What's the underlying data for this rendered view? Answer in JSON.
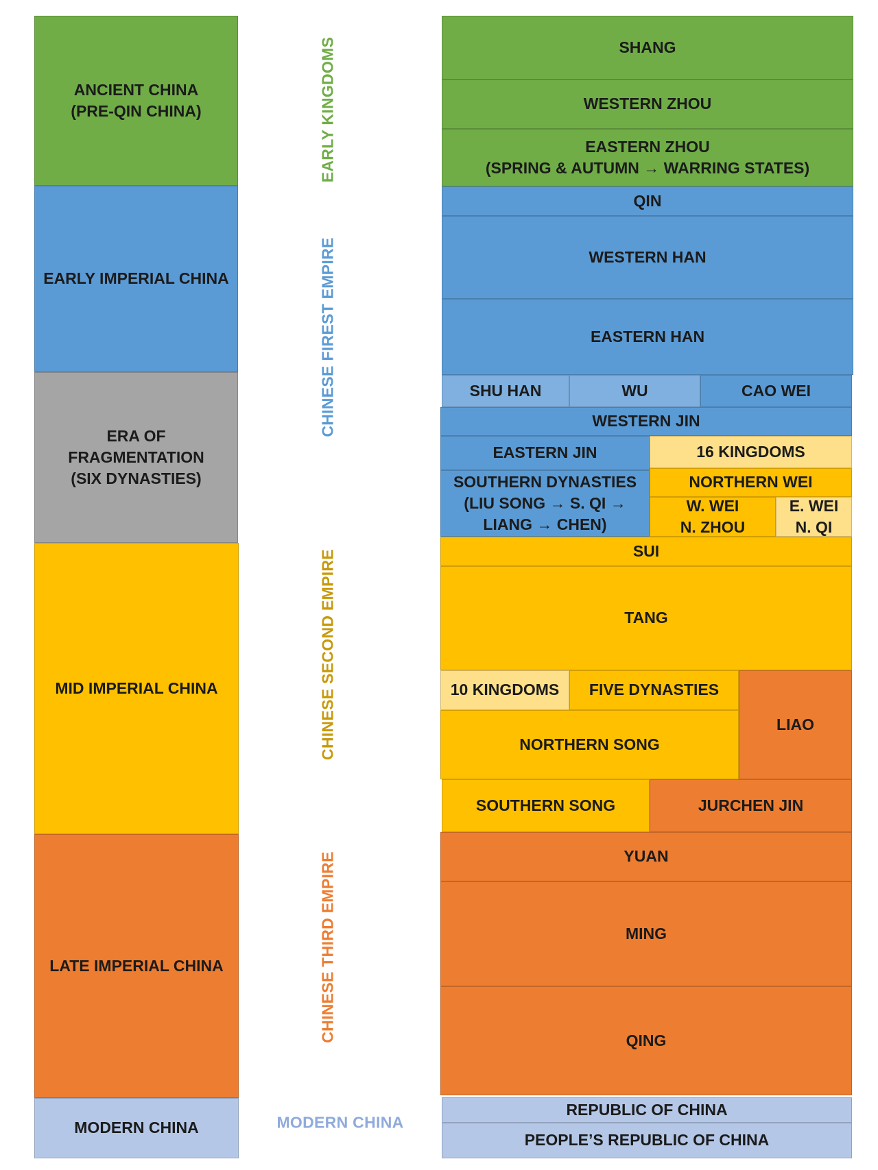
{
  "colors": {
    "green": "#70ad47",
    "blue": "#5b9bd5",
    "gray": "#a5a5a5",
    "gold": "#ffc000",
    "orange": "#ed7d31",
    "pale_blue": "#b4c7e7",
    "light_gold": "#ffe08a"
  },
  "eras": {
    "ancient": [
      "ANCIENT CHINA",
      "(PRE-QIN CHINA)"
    ],
    "early_imperial": "EARLY IMPERIAL CHINA",
    "fragmentation": [
      "ERA OF",
      "FRAGMENTATION",
      "(SIX DYNASTIES)"
    ],
    "mid_imperial": "MID IMPERIAL CHINA",
    "late_imperial": "LATE IMPERIAL CHINA",
    "modern": "MODERN CHINA"
  },
  "empires": {
    "early_kingdoms": "EARLY KINGDOMS",
    "first": "CHINESE FIREST EMPIRE",
    "second": "CHINESE SECOND EMPIRE",
    "third": "CHINESE THIRD EMPIRE",
    "modern": "MODERN CHINA"
  },
  "dynasties": {
    "shang": "SHANG",
    "western_zhou": "WESTERN ZHOU",
    "eastern_zhou": [
      "EASTERN ZHOU",
      "(SPRING & AUTUMN → WARRING STATES)"
    ],
    "qin": "QIN",
    "western_han": "WESTERN HAN",
    "eastern_han": "EASTERN HAN",
    "shu_han": "SHU HAN",
    "wu": "WU",
    "cao_wei": "CAO WEI",
    "western_jin": "WESTERN JIN",
    "eastern_jin": "EASTERN JIN",
    "sixteen_kingdoms": "16 KINGDOMS",
    "southern_dynasties": [
      "SOUTHERN DYNASTIES",
      "(LIU SONG → S. QI →",
      "LIANG → CHEN)"
    ],
    "northern_wei": "NORTHERN WEI",
    "w_wei": [
      "W. WEI",
      "N. ZHOU"
    ],
    "e_wei": [
      "E. WEI",
      "N. QI"
    ],
    "sui": "SUI",
    "tang": "TANG",
    "ten_kingdoms": "10 KINGDOMS",
    "five_dynasties": "FIVE DYNASTIES",
    "liao": "LIAO",
    "northern_song": "NORTHERN SONG",
    "southern_song": "SOUTHERN SONG",
    "jurchen_jin": "JURCHEN JIN",
    "yuan": "YUAN",
    "ming": "MING",
    "qing": "QING",
    "roc": "REPUBLIC OF CHINA",
    "prc": "PEOPLE’S REPUBLIC OF CHINA"
  }
}
